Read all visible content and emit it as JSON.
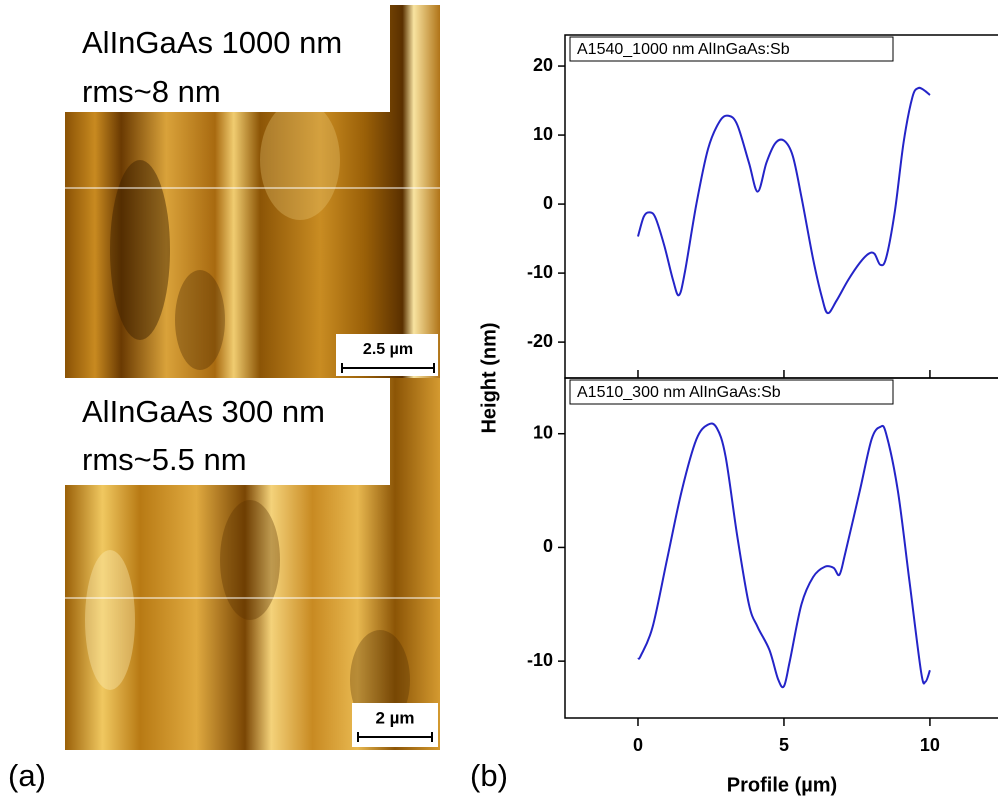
{
  "images": [
    {
      "label_lines": [
        "AlInGaAs 1000 nm",
        "rms~8 nm"
      ],
      "scale_bar": "2.5 µm"
    },
    {
      "label_lines": [
        "AlInGaAs 300 nm",
        "rms~5.5 nm"
      ],
      "scale_bar": "2 µm"
    }
  ],
  "panel_labels": [
    "(a)",
    "(b)"
  ],
  "chart_data": [
    {
      "type": "line",
      "y_label": "Height (nm)",
      "x": [
        0,
        0.2,
        0.4,
        0.6,
        0.9,
        1.2,
        1.4,
        1.6,
        2.0,
        2.4,
        2.8,
        3.1,
        3.4,
        3.8,
        4.1,
        4.4,
        4.7,
        5.0,
        5.3,
        5.6,
        6.0,
        6.3,
        6.5,
        6.8,
        7.2,
        7.6,
        7.9,
        8.1,
        8.3,
        8.5,
        8.8,
        9.1,
        9.4,
        9.6,
        9.8,
        10
      ],
      "series": [
        {
          "name": "A1540_1000 nm AlInGaAs:Sb",
          "color": "#2424c8",
          "values": [
            -4.7,
            -1.8,
            -1.2,
            -2,
            -6,
            -11,
            -13.2,
            -10,
            0,
            8,
            12,
            12.8,
            11.5,
            6,
            1.8,
            6,
            8.8,
            9.2,
            7,
            1,
            -8,
            -13.5,
            -15.8,
            -14,
            -11,
            -8.5,
            -7.2,
            -7.2,
            -8.8,
            -7.8,
            -1,
            9,
            15.5,
            16.8,
            16.5,
            15.8
          ]
        }
      ],
      "xlim": [
        -2.5,
        12.4
      ],
      "xticks": [
        0,
        5,
        10
      ],
      "ylim": [
        -25.2,
        24.5
      ],
      "yticks": [
        -20,
        -10,
        0,
        10,
        20
      ]
    },
    {
      "type": "line",
      "x_label": "Profile (µm)",
      "x": [
        0,
        0.1,
        0.5,
        1.0,
        1.5,
        2.0,
        2.4,
        2.7,
        3.0,
        3.4,
        3.8,
        4.1,
        4.5,
        4.8,
        5.0,
        5.2,
        5.6,
        6.0,
        6.4,
        6.7,
        6.9,
        7.1,
        7.6,
        8.0,
        8.3,
        8.5,
        8.9,
        9.3,
        9.7,
        9.85,
        10
      ],
      "series": [
        {
          "name": "A1510_300 nm AlInGaAs:Sb",
          "color": "#2424c8",
          "values": [
            -9.8,
            -9.5,
            -7,
            -1,
            5,
            9.5,
            10.8,
            10.5,
            8,
            1,
            -5,
            -7,
            -9,
            -11.6,
            -12.2,
            -10,
            -5,
            -2.6,
            -1.7,
            -1.8,
            -2.4,
            -0.5,
            5,
            9.5,
            10.6,
            10,
            5,
            -3,
            -11,
            -11.8,
            -10.8
          ]
        }
      ],
      "xlim": [
        -2.5,
        12.4
      ],
      "xticks": [
        0,
        5,
        10
      ],
      "ylim": [
        -15,
        14.9
      ],
      "yticks": [
        -10,
        0,
        10
      ]
    }
  ]
}
